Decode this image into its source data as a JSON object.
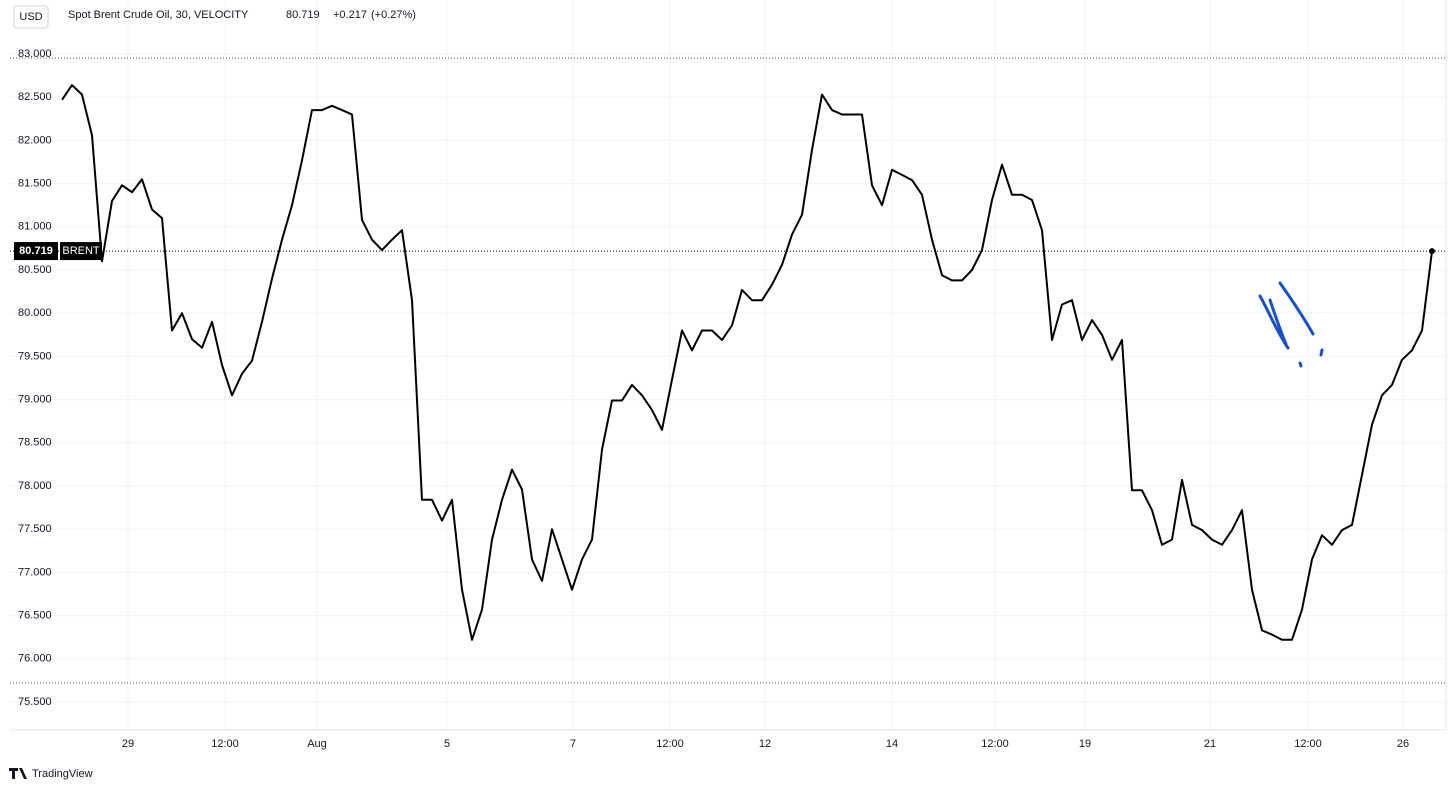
{
  "header": {
    "currency": "USD",
    "symbol": "Spot Brent Crude Oil, 30, VELOCITY",
    "change": "+0.217",
    "change_percent": "(+0.27%)"
  },
  "footer": {
    "brand": "TradingView"
  },
  "chart_data": {
    "type": "line",
    "color": "#000000",
    "price_label_name": "BRENT",
    "grid": true,
    "values": [
      82.47,
      82.64,
      82.53,
      82.06,
      80.6,
      81.3,
      81.48,
      81.4,
      81.55,
      81.2,
      81.1,
      79.8,
      80.0,
      79.7,
      79.6,
      79.9,
      79.4,
      79.05,
      79.3,
      79.45,
      79.9,
      80.4,
      80.85,
      81.25,
      81.77,
      82.35,
      82.35,
      82.4,
      82.35,
      82.3,
      81.08,
      80.85,
      80.73,
      80.85,
      80.96,
      80.15,
      77.84,
      77.84,
      77.6,
      77.84,
      76.8,
      76.22,
      76.57,
      77.38,
      77.84,
      78.19,
      77.96,
      77.15,
      76.9,
      77.5,
      77.15,
      76.8,
      77.15,
      77.38,
      78.42,
      78.99,
      78.99,
      79.17,
      79.05,
      78.88,
      78.65,
      79.23,
      79.8,
      79.57,
      79.8,
      79.8,
      79.69,
      79.86,
      80.27,
      80.15,
      80.15,
      80.33,
      80.56,
      80.91,
      81.14,
      81.89,
      82.53,
      82.35,
      82.3,
      82.3,
      82.3,
      81.48,
      81.25,
      81.66,
      81.6,
      81.54,
      81.37,
      80.85,
      80.44,
      80.38,
      80.38,
      80.5,
      80.73,
      81.31,
      81.72,
      81.37,
      81.37,
      81.31,
      80.96,
      79.69,
      80.1,
      80.15,
      79.69,
      79.92,
      79.75,
      79.46,
      79.69,
      77.95,
      77.95,
      77.72,
      77.32,
      77.38,
      78.07,
      77.55,
      77.49,
      77.38,
      77.32,
      77.49,
      77.72,
      76.8,
      76.33,
      76.28,
      76.22,
      76.22,
      76.57,
      77.15,
      77.43,
      77.32,
      77.49,
      77.55,
      78.13,
      78.71,
      79.05,
      79.17,
      79.46,
      79.57,
      79.8,
      80.719
    ],
    "xlim": [
      -5.2,
      138.4
    ],
    "xticks": [
      {
        "value": 6.6,
        "label": "29"
      },
      {
        "value": 16.3,
        "label": "12:00"
      },
      {
        "value": 25.5,
        "label": "Aug"
      },
      {
        "value": 38.5,
        "label": "5"
      },
      {
        "value": 51.1,
        "label": "7"
      },
      {
        "value": 60.8,
        "label": "12:00"
      },
      {
        "value": 70.3,
        "label": "12"
      },
      {
        "value": 83,
        "label": "14"
      },
      {
        "value": 93.3,
        "label": "12:00"
      },
      {
        "value": 102.3,
        "label": "19"
      },
      {
        "value": 114.8,
        "label": "21"
      },
      {
        "value": 124.6,
        "label": "12:00"
      },
      {
        "value": 134.1,
        "label": "26"
      }
    ],
    "ylim": [
      75.176,
      83.509
    ],
    "yticks": [
      {
        "value": 75.5,
        "label": "75.500"
      },
      {
        "value": 76,
        "label": "76.000"
      },
      {
        "value": 76.5,
        "label": "76.500"
      },
      {
        "value": 77,
        "label": "77.000"
      },
      {
        "value": 77.5,
        "label": "77.500"
      },
      {
        "value": 78,
        "label": "78.000"
      },
      {
        "value": 78.5,
        "label": "78.500"
      },
      {
        "value": 79,
        "label": "79.000"
      },
      {
        "value": 79.5,
        "label": "79.500"
      },
      {
        "value": 80,
        "label": "80.000"
      },
      {
        "value": 80.5,
        "label": "80.500"
      },
      {
        "value": 81,
        "label": "81.000"
      },
      {
        "value": 81.5,
        "label": "81.500"
      },
      {
        "value": 82,
        "label": "82.000"
      },
      {
        "value": 82.5,
        "label": "82.500"
      },
      {
        "value": 83,
        "label": "83.000"
      }
    ]
  }
}
